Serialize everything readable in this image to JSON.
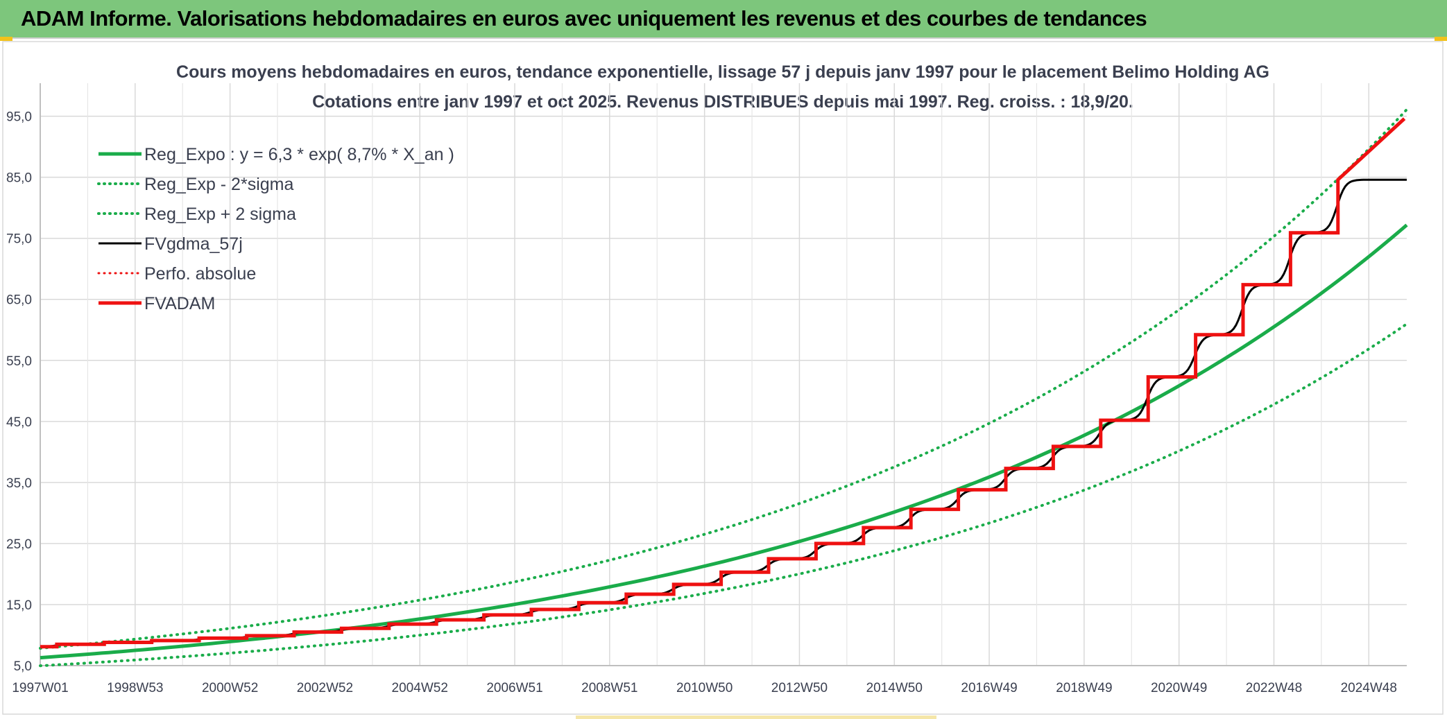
{
  "banner": {
    "title": "ADAM Informe. Valorisations hebdomadaires en euros avec uniquement les revenus et des courbes de tendances",
    "color": "#7dc67c"
  },
  "chart_data": {
    "type": "line",
    "title": "Cours moyens hebdomadaires en euros, tendance exponentielle, lissage 57 j depuis janv 1997 pour le placement Belimo Holding AG",
    "subtitle": "Cotations entre janv 1997 et oct 2025. Revenus DISTRIBUES depuis mai 1997. Reg. croiss. : 18,9/20.",
    "xlabel": "",
    "ylabel": "",
    "x_range_years": [
      1997.0,
      2025.8
    ],
    "ylim": [
      5,
      97
    ],
    "y_ticks": [
      "5,0",
      "15,0",
      "25,0",
      "35,0",
      "45,0",
      "55,0",
      "65,0",
      "75,0",
      "85,0",
      "95,0"
    ],
    "y_tick_values": [
      5,
      15,
      25,
      35,
      45,
      55,
      65,
      75,
      85,
      95
    ],
    "x_ticks": [
      "1997W01",
      "1998W53",
      "2000W52",
      "2002W52",
      "2004W52",
      "2006W51",
      "2008W51",
      "2010W50",
      "2012W50",
      "2014W50",
      "2016W49",
      "2018W49",
      "2020W49",
      "2022W48",
      "2024W48"
    ],
    "x_tick_years": [
      1997.0,
      1999.0,
      2001.0,
      2003.0,
      2005.0,
      2007.0,
      2009.0,
      2011.0,
      2013.0,
      2015.0,
      2017.0,
      2019.0,
      2021.0,
      2023.0,
      2025.0
    ],
    "grid": true,
    "legend_position": "top-left",
    "regression": {
      "a": 6.3,
      "b": 0.087,
      "sigma_factor_upper": 1.245,
      "sigma_factor_lower": 0.79
    },
    "series": [
      {
        "name": "Reg_Expo : y = 6,3 * exp( 8,7% *  X_an )",
        "color": "#1aac4a",
        "style": "solid",
        "width": 5
      },
      {
        "name": "Reg_Exp - 2*sigma",
        "color": "#1aac4a",
        "style": "dotted",
        "width": 4
      },
      {
        "name": "Reg_Exp + 2 sigma",
        "color": "#1aac4a",
        "style": "dotted",
        "width": 4
      },
      {
        "name": "FVgdma_57j",
        "color": "#000000",
        "style": "solid",
        "width": 3
      },
      {
        "name": "Perfo. absolue",
        "color": "#ee1111",
        "style": "dotted",
        "width": 3
      },
      {
        "name": "FVADAM",
        "color": "#ee1111",
        "style": "solid",
        "width": 5
      }
    ],
    "fvadam_steps": {
      "step_years": [
        1997.35,
        1998.35,
        1999.35,
        2000.35,
        2001.35,
        2002.35,
        2003.35,
        2004.35,
        2005.35,
        2006.35,
        2007.35,
        2008.35,
        2009.35,
        2010.35,
        2011.35,
        2012.35,
        2013.35,
        2014.35,
        2015.35,
        2016.35,
        2017.35,
        2018.35,
        2019.35,
        2020.35,
        2021.35,
        2022.35,
        2023.35,
        2024.35,
        2025.8
      ],
      "values": [
        8.1,
        8.5,
        8.8,
        9.1,
        9.5,
        9.9,
        10.5,
        11.1,
        11.8,
        12.5,
        13.3,
        14.2,
        15.3,
        16.7,
        18.3,
        20.3,
        22.5,
        25.0,
        27.6,
        30.6,
        33.8,
        37.3,
        40.9,
        45.2,
        52.3,
        59.2,
        67.4,
        75.9,
        84.6,
        94.6
      ]
    }
  }
}
